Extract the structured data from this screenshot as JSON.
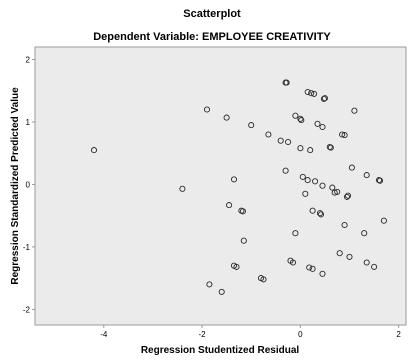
{
  "chart_data": {
    "type": "scatter",
    "title": "Scatterplot",
    "subtitle": "Dependent Variable: EMPLOYEE CREATIVITY",
    "xlabel": "Regression Studentized Residual",
    "ylabel": "Regression Standardized Predicted Value",
    "xlim": [
      -5.4,
      2.15
    ],
    "ylim": [
      -2.25,
      2.2
    ],
    "x_ticks": [
      -4,
      -2,
      0,
      2
    ],
    "y_ticks": [
      2,
      1,
      0,
      -1,
      -2
    ],
    "x_tick_labels": [
      "-4",
      "-2",
      "0",
      "2"
    ],
    "y_tick_labels": [
      "2",
      "1",
      "0",
      "-1",
      "-2"
    ],
    "grid": false,
    "colors": {
      "plot_background": "#ebebeb",
      "marker_stroke": "#2a2a2a",
      "axis": "#9a9a9a",
      "text": "#000000"
    },
    "points": [
      {
        "x": -4.2,
        "y": 0.55
      },
      {
        "x": -2.4,
        "y": -0.07
      },
      {
        "x": -1.9,
        "y": 1.2
      },
      {
        "x": -1.85,
        "y": -1.6
      },
      {
        "x": -1.6,
        "y": -1.72
      },
      {
        "x": -1.5,
        "y": 1.07
      },
      {
        "x": -1.45,
        "y": -0.33
      },
      {
        "x": -1.35,
        "y": 0.08
      },
      {
        "x": -1.35,
        "y": -1.3
      },
      {
        "x": -1.3,
        "y": -1.32
      },
      {
        "x": -1.2,
        "y": -0.42
      },
      {
        "x": -1.17,
        "y": -0.43
      },
      {
        "x": -1.15,
        "y": -0.9
      },
      {
        "x": -1.0,
        "y": 0.95
      },
      {
        "x": -0.8,
        "y": -1.5
      },
      {
        "x": -0.75,
        "y": -1.52
      },
      {
        "x": -0.65,
        "y": 0.8
      },
      {
        "x": -0.4,
        "y": 0.7
      },
      {
        "x": -0.3,
        "y": 1.63
      },
      {
        "x": -0.28,
        "y": 1.63
      },
      {
        "x": -0.3,
        "y": 0.22
      },
      {
        "x": -0.25,
        "y": 0.68
      },
      {
        "x": -0.2,
        "y": -1.22
      },
      {
        "x": -0.15,
        "y": -1.25
      },
      {
        "x": -0.1,
        "y": 1.1
      },
      {
        "x": -0.1,
        "y": -0.78
      },
      {
        "x": 0.0,
        "y": 1.05
      },
      {
        "x": 0.02,
        "y": 1.03
      },
      {
        "x": 0.0,
        "y": 0.58
      },
      {
        "x": 0.05,
        "y": 0.12
      },
      {
        "x": 0.1,
        "y": -0.15
      },
      {
        "x": 0.15,
        "y": 1.48
      },
      {
        "x": 0.15,
        "y": 0.07
      },
      {
        "x": 0.18,
        "y": -1.33
      },
      {
        "x": 0.2,
        "y": 0.55
      },
      {
        "x": 0.22,
        "y": 1.46
      },
      {
        "x": 0.25,
        "y": -0.42
      },
      {
        "x": 0.25,
        "y": -1.35
      },
      {
        "x": 0.28,
        "y": 1.45
      },
      {
        "x": 0.3,
        "y": 0.05
      },
      {
        "x": 0.35,
        "y": 0.97
      },
      {
        "x": 0.4,
        "y": -0.46
      },
      {
        "x": 0.42,
        "y": -0.48
      },
      {
        "x": 0.45,
        "y": -0.02
      },
      {
        "x": 0.45,
        "y": -1.43
      },
      {
        "x": 0.45,
        "y": 0.92
      },
      {
        "x": 0.48,
        "y": 1.37
      },
      {
        "x": 0.5,
        "y": 1.38
      },
      {
        "x": 0.6,
        "y": 0.6
      },
      {
        "x": 0.62,
        "y": 0.59
      },
      {
        "x": 0.65,
        "y": -0.05
      },
      {
        "x": 0.7,
        "y": -0.13
      },
      {
        "x": 0.75,
        "y": -0.12
      },
      {
        "x": 0.8,
        "y": -1.1
      },
      {
        "x": 0.85,
        "y": 0.8
      },
      {
        "x": 0.9,
        "y": 0.79
      },
      {
        "x": 0.9,
        "y": -0.65
      },
      {
        "x": 0.95,
        "y": -0.2
      },
      {
        "x": 0.97,
        "y": -0.18
      },
      {
        "x": 1.0,
        "y": -1.16
      },
      {
        "x": 1.05,
        "y": 0.27
      },
      {
        "x": 1.1,
        "y": 1.18
      },
      {
        "x": 1.3,
        "y": -0.78
      },
      {
        "x": 1.35,
        "y": 0.15
      },
      {
        "x": 1.35,
        "y": -1.25
      },
      {
        "x": 1.5,
        "y": -1.32
      },
      {
        "x": 1.6,
        "y": 0.07
      },
      {
        "x": 1.62,
        "y": 0.06
      },
      {
        "x": 1.7,
        "y": -0.58
      }
    ]
  }
}
